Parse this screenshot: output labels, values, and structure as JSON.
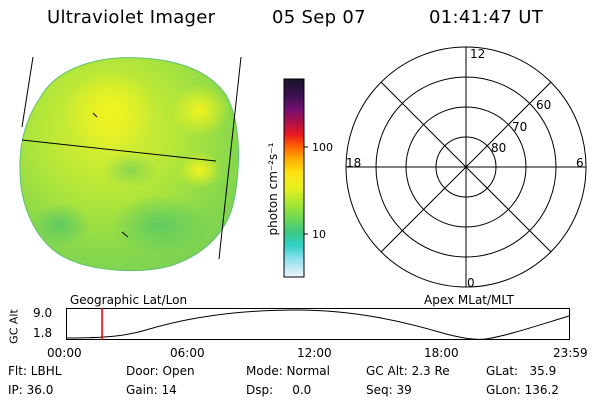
{
  "header": {
    "title": "Ultraviolet Imager",
    "date": "05 Sep 07",
    "time": "01:41:47 UT"
  },
  "colorbar": {
    "unit_label": "photon cm⁻²s⁻¹",
    "tick_100": "100",
    "tick_10": "10",
    "colors": [
      "#1a1a2e",
      "#3a1050",
      "#6a1070",
      "#a01060",
      "#d01030",
      "#ff2020",
      "#ff6a00",
      "#ffa000",
      "#ffd000",
      "#f0f020",
      "#c8f020",
      "#90e040",
      "#50d060",
      "#30c8a0",
      "#40d8d8",
      "#a0e8f0",
      "#e8f4f8"
    ]
  },
  "polar_plot": {
    "label_12": "12",
    "label_18": "18",
    "label_6": "6",
    "label_0": "0",
    "lat_60": "60",
    "lat_70": "70",
    "lat_80": "80"
  },
  "captions": {
    "left": "Geographic Lat/Lon",
    "right": "Apex MLat/MLT"
  },
  "orbit": {
    "axis_label": "GC Alt",
    "y_high": "9.0",
    "y_low": "1.8",
    "x_ticks": [
      "00:00",
      "06:00",
      "12:00",
      "18:00",
      "23:59"
    ],
    "current_time_fraction": 0.0707
  },
  "footer": {
    "flt": "Flt: LBHL",
    "ip": "IP: 36.0",
    "door": "Door: Open",
    "gain": "Gain: 14",
    "mode": "Mode: Normal",
    "dsp": "Dsp:     0.0",
    "gcalt": "GC Alt: 2.3 Re",
    "seq": "Seq: 39",
    "glat": "GLat:   35.9",
    "glon": "GLon: 136.2"
  }
}
